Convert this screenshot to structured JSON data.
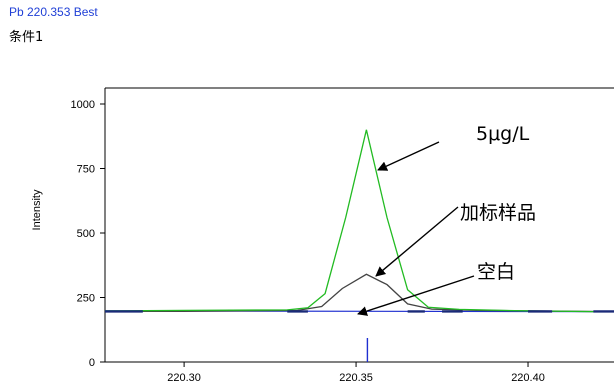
{
  "header": {
    "title": "Pb 220.353 Best",
    "condition": "条件1"
  },
  "chart_data": {
    "type": "line",
    "title": "",
    "xlabel": "",
    "ylabel": "Intensity",
    "xlim": [
      220.277,
      220.425
    ],
    "ylim": [
      0,
      1000
    ],
    "x_ticks": [
      "220.30",
      "220.35",
      "220.40"
    ],
    "x_tick_values": [
      220.3,
      220.35,
      220.4
    ],
    "y_ticks": [
      "0",
      "250",
      "500",
      "750",
      "1000"
    ],
    "y_tick_values": [
      0,
      250,
      500,
      750,
      1000
    ],
    "peak_marker_x": 220.3533,
    "colors": {
      "green": "#22bb22",
      "black": "#444444",
      "blue": "#1f2fd0",
      "blank_segments": "#1a2a78"
    },
    "series": [
      {
        "name": "5μg/L",
        "color": "green",
        "x": [
          220.277,
          220.3,
          220.33,
          220.336,
          220.341,
          220.347,
          220.353,
          220.359,
          220.365,
          220.371,
          220.38,
          220.4,
          220.425
        ],
        "y": [
          198,
          200,
          202,
          210,
          265,
          560,
          900,
          560,
          280,
          212,
          204,
          198,
          194
        ]
      },
      {
        "name": "加标样品",
        "color": "black",
        "x": [
          220.277,
          220.3,
          220.333,
          220.34,
          220.346,
          220.353,
          220.359,
          220.365,
          220.372,
          220.385,
          220.425
        ],
        "y": [
          196,
          196,
          200,
          215,
          285,
          340,
          300,
          225,
          205,
          200,
          195
        ]
      },
      {
        "name": "空白",
        "color": "blue",
        "x": [
          220.277,
          220.425
        ],
        "y": [
          198,
          195
        ]
      }
    ],
    "annotations": [
      {
        "text": "5μg/L"
      },
      {
        "text": "加标样品"
      },
      {
        "text": "空白"
      }
    ]
  }
}
